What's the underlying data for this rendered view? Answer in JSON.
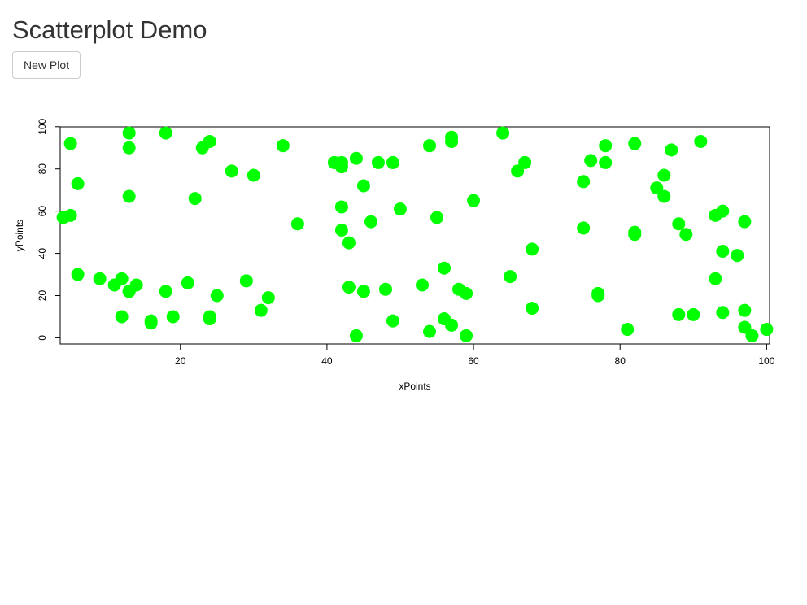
{
  "page": {
    "title": "Scatterplot Demo",
    "new_plot_label": "New Plot"
  },
  "chart_data": {
    "type": "scatter",
    "xlabel": "xPoints",
    "ylabel": "yPoints",
    "xlim": [
      3.6,
      100.4
    ],
    "ylim": [
      -2.92,
      99.92
    ],
    "x_ticks": [
      20,
      40,
      60,
      80,
      100
    ],
    "y_ticks": [
      0,
      20,
      40,
      60,
      80,
      100
    ],
    "point_color": "#00ff00",
    "grid": false,
    "series": [
      {
        "x": [
          5,
          6,
          4,
          5,
          6,
          9,
          11,
          12,
          13,
          13,
          12,
          13,
          13,
          13,
          14,
          16,
          16,
          18,
          18,
          19,
          21,
          22,
          23,
          24,
          24,
          24,
          25,
          27,
          29,
          30,
          31,
          32,
          34,
          36,
          41,
          42,
          42,
          42,
          42,
          43,
          43,
          44,
          44,
          45,
          45,
          46,
          47,
          48,
          49,
          49,
          50,
          53,
          54,
          54,
          55,
          56,
          56,
          57,
          57,
          57,
          58,
          59,
          59,
          60,
          64,
          65,
          66,
          67,
          68,
          68,
          75,
          75,
          76,
          77,
          77,
          78,
          78,
          81,
          82,
          82,
          82,
          85,
          86,
          86,
          87,
          88,
          88,
          89,
          90,
          91,
          93,
          93,
          94,
          94,
          94,
          96,
          97,
          97,
          97,
          98,
          100
        ],
        "y": [
          92,
          73,
          57,
          58,
          30,
          28,
          25,
          28,
          22,
          97,
          10,
          90,
          67,
          22,
          25,
          7,
          8,
          97,
          22,
          10,
          26,
          66,
          90,
          93,
          10,
          9,
          20,
          79,
          27,
          77,
          13,
          19,
          91,
          54,
          83,
          83,
          81,
          62,
          51,
          45,
          24,
          85,
          1,
          72,
          22,
          55,
          83,
          23,
          83,
          8,
          61,
          25,
          91,
          3,
          57,
          33,
          9,
          95,
          93,
          6,
          23,
          21,
          1,
          65,
          97,
          29,
          79,
          83,
          42,
          14,
          74,
          52,
          84,
          21,
          20,
          91,
          83,
          4,
          92,
          50,
          49,
          71,
          77,
          67,
          89,
          54,
          11,
          49,
          11,
          93,
          58,
          28,
          60,
          41,
          12,
          39,
          55,
          13,
          5,
          1,
          4
        ]
      }
    ]
  }
}
